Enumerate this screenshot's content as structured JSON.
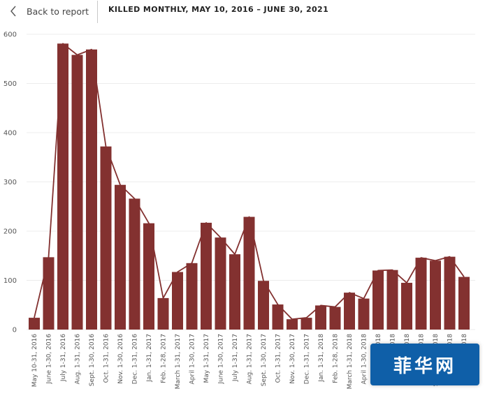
{
  "header": {
    "back_label": "Back to report",
    "title": "KILLED MONTHLY, MAY 10, 2016 – JUNE 30, 2021"
  },
  "watermark": {
    "text": "菲华网"
  },
  "colors": {
    "bar": "#833130",
    "line": "#833130",
    "grid": "#ececec"
  },
  "chart_data": {
    "type": "bar",
    "title": "KILLED MONTHLY, MAY 10, 2016 – JUNE 30, 2021",
    "xlabel": "",
    "ylabel": "",
    "ylim": [
      0,
      600
    ],
    "yticks": [
      0,
      100,
      200,
      300,
      400,
      500,
      600
    ],
    "grid": true,
    "overlay": "line connecting bar tops",
    "categories": [
      "May 10-31, 2016",
      "June 1-30, 2016",
      "July 1-31, 2016",
      "Aug. 1-31, 2016",
      "Sept. 1-30, 2016",
      "Oct. 1-31, 2016",
      "Nov. 1-30, 2016",
      "Dec. 1-31, 2016",
      "Jan. 1-31, 2017",
      "Feb. 1-28, 2017",
      "March 1-31, 2017",
      "April 1-30, 2017",
      "May 1-31, 2017",
      "June 1-30, 2017",
      "July 1-31, 2017",
      "Aug. 1-31, 2017",
      "Sept. 1-30, 2017",
      "Oct. 1-31, 2017",
      "Nov. 1-30, 2017",
      "Dec. 1-31, 2017",
      "Jan. 1-31, 2018",
      "Feb. 1-28, 2018",
      "March 1-31, 2018",
      "April 1-30, 2018",
      "May 1-31, 2018",
      "June 1-30, 2018",
      "July 1-31, 2018",
      "Aug. 1-31, 2018",
      "Sept. 1-30, 2018",
      "Oct. 1-31, 2018",
      "Nov. 1-30, 2018"
    ],
    "values": [
      24,
      147,
      581,
      558,
      569,
      372,
      294,
      266,
      216,
      64,
      117,
      135,
      217,
      187,
      153,
      229,
      99,
      51,
      21,
      24,
      49,
      46,
      75,
      63,
      120,
      121,
      95,
      146,
      140,
      148,
      107
    ]
  }
}
